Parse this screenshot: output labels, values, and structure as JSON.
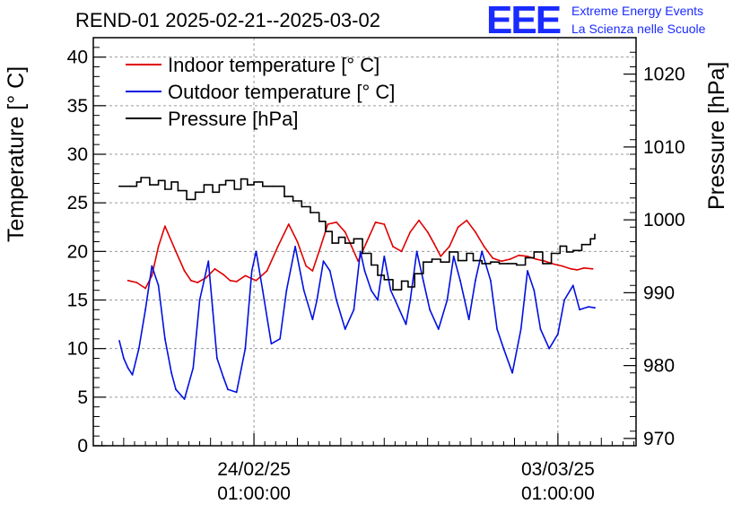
{
  "header": {
    "title": "REND-01 2025-02-21--2025-03-02",
    "logo_mark": "EEE",
    "logo_line1": "Extreme Energy Events",
    "logo_line2": "La Scienza nelle Scuole"
  },
  "colors": {
    "indoor": "#e00000",
    "outdoor": "#0010e0",
    "pressure": "#000000",
    "grid": "#9a9a9a",
    "logo": "#1a2bff"
  },
  "chart_data": {
    "type": "line",
    "title": "REND-01 2025-02-21--2025-03-02",
    "ylabel": "Temperature [° C]",
    "y2label": "Pressure [hPa]",
    "ylim": [
      0,
      42
    ],
    "y2lim": [
      969,
      1025
    ],
    "yticks": [
      0,
      5,
      10,
      15,
      20,
      25,
      30,
      35,
      40
    ],
    "y2ticks": [
      970,
      980,
      990,
      1000,
      1010,
      1020
    ],
    "xlim": [
      -3.7,
      8.8
    ],
    "x_unit": "days from 24/02/25 01:00:00",
    "xticks": [
      {
        "x": 0,
        "date": "24/02/25",
        "time": "01:00:00"
      },
      {
        "x": 7,
        "date": "03/03/25",
        "time": "01:00:00"
      }
    ],
    "grid": true,
    "legend_position": "top-left",
    "series": [
      {
        "name": "Indoor temperature [° C]",
        "axis": "left",
        "x": [
          -2.9,
          -2.7,
          -2.5,
          -2.35,
          -2.2,
          -2.05,
          -1.8,
          -1.6,
          -1.45,
          -1.3,
          -1.1,
          -0.9,
          -0.7,
          -0.55,
          -0.4,
          -0.2,
          0.05,
          0.3,
          0.55,
          0.8,
          1.0,
          1.2,
          1.35,
          1.5,
          1.7,
          1.9,
          2.1,
          2.25,
          2.4,
          2.6,
          2.8,
          3.0,
          3.2,
          3.4,
          3.6,
          3.8,
          4.0,
          4.15,
          4.3,
          4.5,
          4.7,
          4.9,
          5.1,
          5.3,
          5.5,
          5.7,
          5.9,
          6.1,
          6.3,
          6.5,
          6.7,
          6.9,
          7.1,
          7.3,
          7.45,
          7.6,
          7.8
        ],
        "values": [
          17.0,
          16.8,
          16.2,
          17.5,
          20.5,
          22.6,
          20.0,
          18.0,
          17.0,
          16.8,
          17.3,
          18.2,
          17.6,
          17.0,
          16.9,
          17.5,
          17.0,
          18.0,
          20.5,
          22.8,
          21.0,
          18.5,
          18.0,
          20.0,
          22.8,
          23.0,
          22.0,
          20.5,
          19.0,
          21.0,
          23.0,
          22.8,
          20.5,
          20.0,
          22.0,
          23.2,
          22.0,
          20.8,
          19.5,
          20.5,
          22.5,
          23.2,
          22.0,
          20.5,
          19.3,
          19.0,
          19.2,
          19.6,
          19.5,
          19.2,
          19.0,
          18.7,
          18.5,
          18.2,
          18.1,
          18.3,
          18.2
        ]
      },
      {
        "name": "Outdoor temperature [° C]",
        "axis": "left",
        "x": [
          -3.1,
          -3.0,
          -2.9,
          -2.8,
          -2.65,
          -2.5,
          -2.35,
          -2.2,
          -2.05,
          -1.9,
          -1.8,
          -1.6,
          -1.4,
          -1.25,
          -1.05,
          -0.95,
          -0.85,
          -0.7,
          -0.6,
          -0.4,
          -0.2,
          -0.05,
          0.05,
          0.2,
          0.4,
          0.6,
          0.75,
          0.95,
          1.15,
          1.35,
          1.45,
          1.6,
          1.75,
          1.9,
          2.1,
          2.3,
          2.45,
          2.55,
          2.7,
          2.85,
          3.0,
          3.15,
          3.35,
          3.5,
          3.6,
          3.75,
          3.9,
          4.05,
          4.25,
          4.45,
          4.6,
          4.75,
          4.95,
          5.1,
          5.25,
          5.45,
          5.6,
          5.75,
          5.95,
          6.15,
          6.3,
          6.45,
          6.6,
          6.8,
          7.0,
          7.15,
          7.35,
          7.5,
          7.7,
          7.85
        ],
        "values": [
          10.8,
          9.0,
          8.0,
          7.3,
          10.0,
          14.0,
          18.5,
          16.5,
          11.0,
          7.5,
          5.8,
          4.8,
          8.0,
          15.0,
          19.0,
          14.0,
          9.0,
          7.0,
          5.8,
          5.5,
          10.0,
          18.0,
          20.0,
          16.0,
          10.5,
          11.0,
          16.0,
          20.5,
          16.0,
          13.0,
          15.0,
          19.0,
          18.0,
          15.0,
          12.0,
          14.0,
          20.0,
          18.0,
          16.0,
          15.0,
          19.5,
          16.0,
          14.0,
          12.5,
          15.0,
          20.0,
          17.0,
          14.0,
          12.0,
          15.0,
          19.5,
          17.0,
          13.0,
          17.0,
          20.0,
          17.0,
          12.0,
          10.0,
          7.5,
          12.0,
          18.0,
          16.0,
          12.0,
          10.0,
          11.5,
          15.0,
          16.5,
          14.0,
          14.3,
          14.2
        ]
      },
      {
        "name": "Pressure [hPa]",
        "axis": "right",
        "x": [
          -3.1,
          -2.85,
          -2.7,
          -2.6,
          -2.4,
          -2.2,
          -2.05,
          -1.9,
          -1.75,
          -1.55,
          -1.35,
          -1.15,
          -0.95,
          -0.8,
          -0.65,
          -0.45,
          -0.3,
          -0.15,
          0.0,
          0.2,
          0.45,
          0.7,
          0.9,
          1.1,
          1.3,
          1.5,
          1.65,
          1.8,
          1.95,
          2.1,
          2.3,
          2.5,
          2.7,
          2.85,
          3.0,
          3.2,
          3.4,
          3.55,
          3.7,
          3.9,
          4.1,
          4.3,
          4.5,
          4.7,
          4.9,
          5.05,
          5.25,
          5.45,
          5.65,
          5.85,
          6.05,
          6.25,
          6.45,
          6.65,
          6.85,
          7.05,
          7.2,
          7.35,
          7.55,
          7.75,
          7.85
        ],
        "values": [
          1004.6,
          1004.6,
          1005.2,
          1005.8,
          1004.8,
          1005.4,
          1004.2,
          1005.2,
          1004.0,
          1002.8,
          1003.8,
          1004.8,
          1003.8,
          1004.8,
          1005.4,
          1004.2,
          1005.6,
          1004.8,
          1005.2,
          1004.6,
          1004.6,
          1003.2,
          1002.6,
          1001.8,
          1001.0,
          999.8,
          998.4,
          996.8,
          997.6,
          996.8,
          997.4,
          995.4,
          993.8,
          992.4,
          991.8,
          990.4,
          991.6,
          990.8,
          992.6,
          994.2,
          994.6,
          994.2,
          995.6,
          994.4,
          995.4,
          994.4,
          994.0,
          994.2,
          994.0,
          994.0,
          993.8,
          994.8,
          995.6,
          994.0,
          995.4,
          996.4,
          995.6,
          995.8,
          996.6,
          997.4,
          998.0
        ]
      }
    ]
  }
}
